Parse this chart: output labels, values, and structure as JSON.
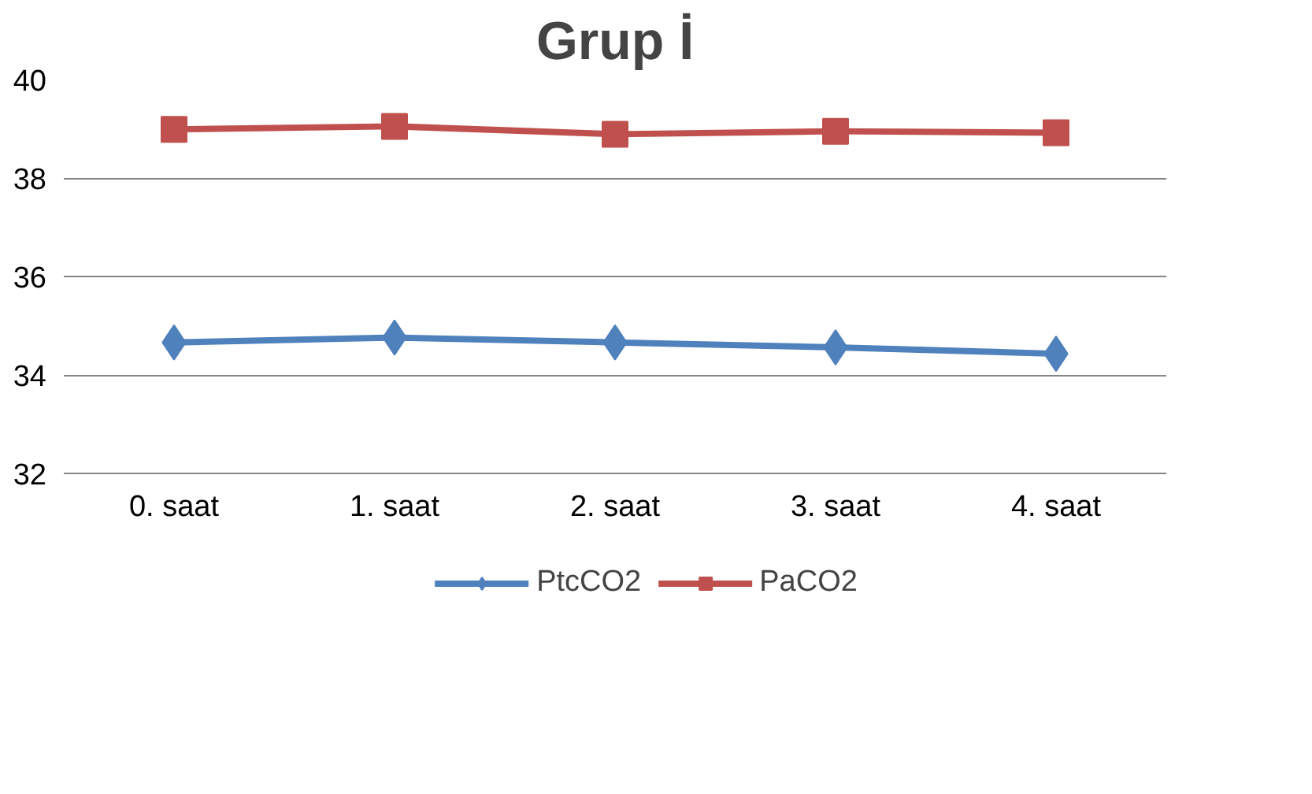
{
  "chart_data": {
    "type": "line",
    "title": "Grup İ",
    "categories": [
      "0. saat",
      "1. saat",
      "2. saat",
      "3. saat",
      "4. saat"
    ],
    "series": [
      {
        "name": "PtcCO2",
        "color": "#4f81bd",
        "marker": "diamond",
        "values": [
          34.66,
          34.76,
          34.66,
          34.56,
          34.43
        ]
      },
      {
        "name": "PaCO2",
        "color": "#c0504d",
        "marker": "square",
        "values": [
          38.99,
          39.05,
          38.89,
          38.95,
          38.92
        ]
      }
    ],
    "ylim": [
      32,
      40
    ],
    "yticks": [
      32,
      34,
      36,
      38,
      40
    ],
    "grid": "y",
    "legend": "bottom"
  }
}
